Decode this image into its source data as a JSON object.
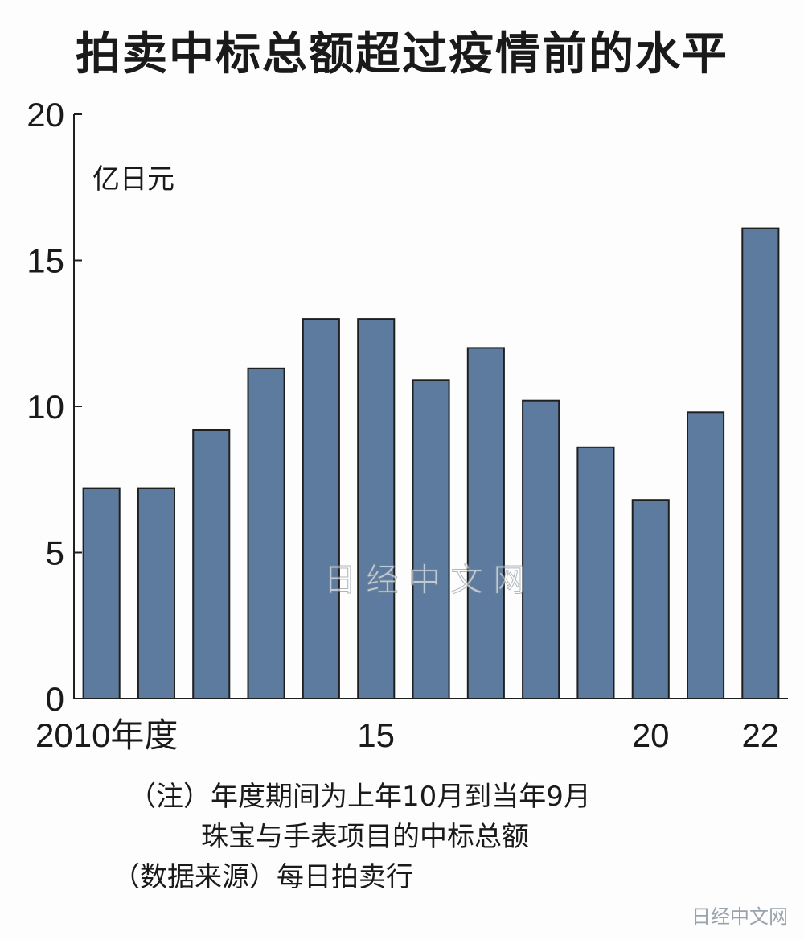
{
  "title": "拍卖中标总额超过疫情前的水平",
  "chart_data": {
    "type": "bar",
    "title": "拍卖中标总额超过疫情前的水平",
    "ylabel": "亿日元",
    "xlabel": "",
    "categories": [
      "2010",
      "2011",
      "2012",
      "2013",
      "2014",
      "2015",
      "2016",
      "2017",
      "2018",
      "2019",
      "2020",
      "2021",
      "2022"
    ],
    "values": [
      7.2,
      7.2,
      9.2,
      11.3,
      13.0,
      13.0,
      10.9,
      12.0,
      10.2,
      8.6,
      6.8,
      9.8,
      16.1
    ],
    "ylim": [
      0,
      20
    ],
    "yticks": [
      "0",
      "5",
      "10",
      "15",
      "20"
    ],
    "xtick_labels": [
      {
        "index": 0,
        "text": "2010年度"
      },
      {
        "index": 5,
        "text": "15"
      },
      {
        "index": 10,
        "text": "20"
      },
      {
        "index": 12,
        "text": "22"
      }
    ],
    "bar_color": "#5d7b9e",
    "grid": false
  },
  "watermark": "日 经 中 文 网",
  "notes": {
    "line1": "（注）年度期间为上年10月到当年9月",
    "line2": "珠宝与手表项目的中标总额",
    "line3": "（数据来源）每日拍卖行"
  },
  "corner_mark": "日经中文网"
}
